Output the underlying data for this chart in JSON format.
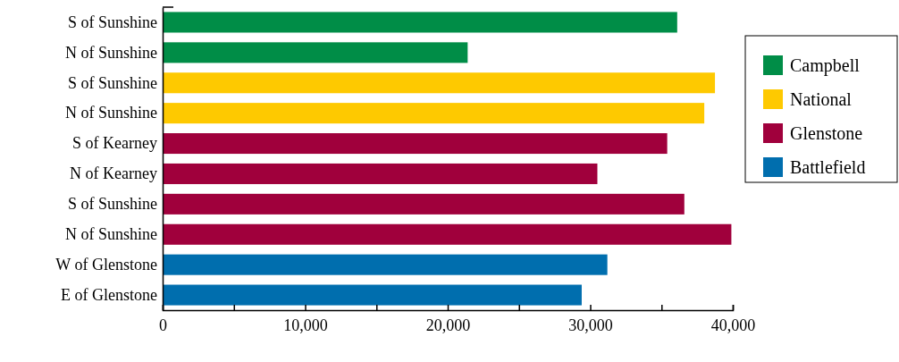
{
  "chart_data": {
    "type": "bar",
    "orientation": "horizontal",
    "categories": [
      "S of Sunshine",
      "N of Sunshine",
      "S of Sunshine",
      "N of Sunshine",
      "S of Kearney",
      "N of Kearney",
      "S of Sunshine",
      "N of Sunshine",
      "W of Glenstone",
      "E of Glenstone"
    ],
    "series": [
      {
        "name": "Campbell",
        "color": "#008d47",
        "values": [
          36100,
          21400,
          null,
          null,
          null,
          null,
          null,
          null,
          null,
          null
        ]
      },
      {
        "name": "National",
        "color": "#fec900",
        "values": [
          null,
          null,
          38750,
          38000,
          null,
          null,
          null,
          null,
          null,
          null
        ]
      },
      {
        "name": "Glenstone",
        "color": "#a0003c",
        "values": [
          null,
          null,
          null,
          null,
          35400,
          30500,
          36600,
          39900,
          null,
          null
        ]
      },
      {
        "name": "Battlefield",
        "color": "#006eae",
        "values": [
          null,
          null,
          null,
          null,
          null,
          null,
          null,
          null,
          31200,
          29400
        ]
      }
    ],
    "xlim": [
      0,
      40000
    ],
    "xticks": [
      0,
      {
        "value": 5000,
        "label": null
      },
      {
        "value": 10000,
        "label": "10,000"
      },
      {
        "value": 15000,
        "label": null
      },
      {
        "value": 20000,
        "label": "20,000"
      },
      {
        "value": 25000,
        "label": null
      },
      {
        "value": 30000,
        "label": "30,000"
      },
      {
        "value": 35000,
        "label": null
      },
      {
        "value": 40000,
        "label": "40,000"
      }
    ],
    "legend": "right",
    "grid": false
  }
}
